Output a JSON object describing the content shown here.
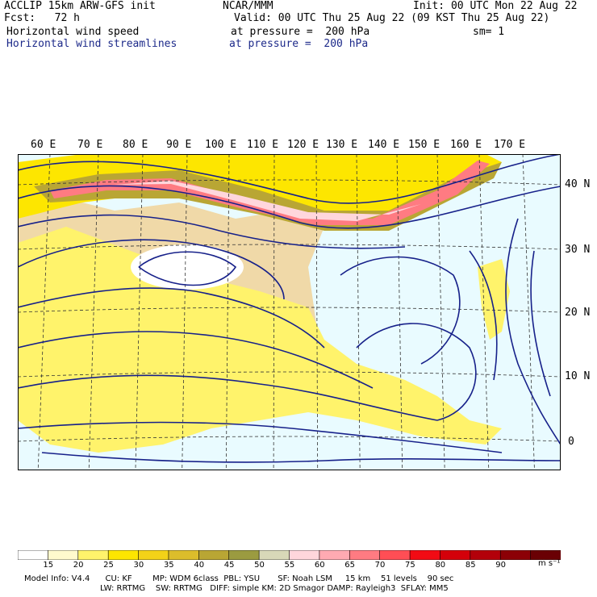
{
  "header": {
    "model": "ACCLIP 15km ARW-GFS init",
    "center": "NCAR/MMM",
    "init": "Init: 00 UTC Mon 22 Aug 22",
    "fcst": "Fcst:   72 h",
    "valid": "Valid: 00 UTC Thu 25 Aug 22 (09 KST Thu 25 Aug 22)",
    "field1": "Horizontal wind speed",
    "pressure1": "at pressure =  200 hPa",
    "sm": "sm= 1",
    "field2": "Horizontal wind streamlines",
    "pressure2": "at pressure =  200 hPa"
  },
  "map": {
    "lon_labels": [
      "60 E",
      "70 E",
      "80 E",
      "90 E",
      "100 E",
      "110 E",
      "120 E",
      "130 E",
      "140 E",
      "150 E",
      "160 E",
      "170 E"
    ],
    "lat_labels": [
      "40 N",
      "30 N",
      "20 N",
      "10 N",
      "0"
    ]
  },
  "colorbar": {
    "labels": [
      "15",
      "20",
      "25",
      "30",
      "35",
      "40",
      "45",
      "50",
      "55",
      "60",
      "65",
      "70",
      "75",
      "80",
      "85",
      "90"
    ],
    "unit": "m s⁻¹",
    "colors": [
      "#ffffff",
      "#fffacd",
      "#fff36b",
      "#fde600",
      "#f3d218",
      "#dcbd2b",
      "#b9a634",
      "#9b9b40",
      "#d8d8b8",
      "#ffd6dc",
      "#ffaab2",
      "#ff7b82",
      "#ff4e55",
      "#f20b14",
      "#d4000a",
      "#b3000a",
      "#8c0006",
      "#6a0004"
    ]
  },
  "footer": {
    "line1": "Model Info: V4.4      CU: KF        MP: WDM 6class  PBL: YSU       SF: Noah LSM     15 km    51 levels    90 sec",
    "line2": "LW: RRTMG    SW: RRTMG   DIFF: simple KM: 2D Smagor DAMP: Rayleigh3  SFLAY: MM5"
  }
}
